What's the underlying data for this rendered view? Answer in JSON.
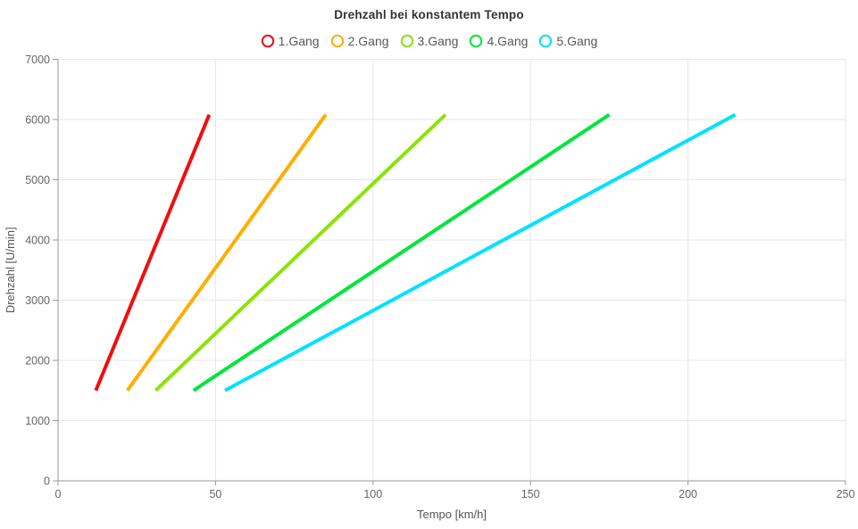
{
  "chart_data": {
    "type": "line",
    "title": "Drehzahl bei konstantem Tempo",
    "xlabel": "Tempo [km/h]",
    "ylabel": "Drehzahl [U/min]",
    "xlim": [
      0,
      250
    ],
    "ylim": [
      0,
      7000
    ],
    "x_ticks": [
      0,
      50,
      100,
      150,
      200,
      250
    ],
    "y_ticks": [
      0,
      1000,
      2000,
      3000,
      4000,
      5000,
      6000,
      7000
    ],
    "grid": true,
    "legend_position": "top-center",
    "legend_marker": "circle-outline",
    "series": [
      {
        "name": "1.Gang",
        "color": "#f20d0d",
        "points": [
          [
            12,
            1500
          ],
          [
            48,
            6080
          ]
        ]
      },
      {
        "name": "2.Gang",
        "color": "#ffae00",
        "points": [
          [
            22,
            1500
          ],
          [
            85,
            6080
          ]
        ]
      },
      {
        "name": "3.Gang",
        "color": "#8ce307",
        "points": [
          [
            31,
            1500
          ],
          [
            123,
            6080
          ]
        ]
      },
      {
        "name": "4.Gang",
        "color": "#00e63c",
        "points": [
          [
            43,
            1500
          ],
          [
            175,
            6080
          ]
        ]
      },
      {
        "name": "5.Gang",
        "color": "#00e1ff",
        "points": [
          [
            53,
            1500
          ],
          [
            215,
            6080
          ]
        ]
      }
    ]
  }
}
